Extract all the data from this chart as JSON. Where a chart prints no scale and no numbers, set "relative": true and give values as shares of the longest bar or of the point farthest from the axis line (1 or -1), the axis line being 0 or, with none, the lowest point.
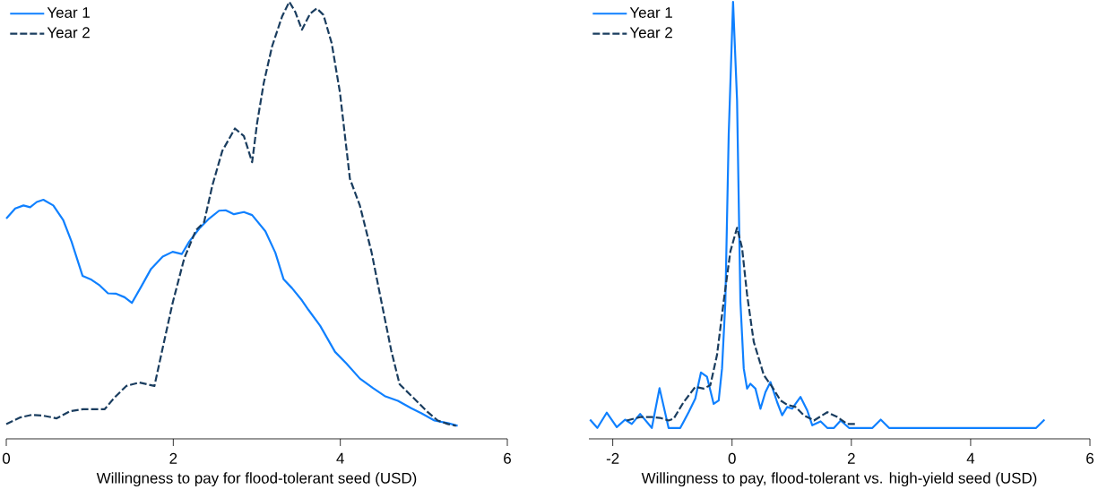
{
  "chart_data": [
    {
      "type": "line",
      "relative": true,
      "xlabel": "Willingness to pay for flood-tolerant seed (USD)",
      "xlim": [
        0,
        6
      ],
      "xticks": [
        0,
        2,
        4,
        6
      ],
      "legend": "top left",
      "series": [
        {
          "name": "Year 1",
          "color": "#0f80ff",
          "line_style": "solid",
          "x": [
            0,
            0.107,
            0.206,
            0.286,
            0.365,
            0.444,
            0.563,
            0.683,
            0.782,
            0.913,
            1.02,
            1.119,
            1.218,
            1.317,
            1.417,
            1.504,
            1.615,
            1.734,
            1.873,
            1.992,
            2.103,
            2.19,
            2.31,
            2.429,
            2.548,
            2.627,
            2.726,
            2.845,
            2.944,
            3.103,
            3.222,
            3.321,
            3.421,
            3.54,
            3.619,
            3.758,
            3.937,
            4.075,
            4.234,
            4.393,
            4.532,
            4.69,
            4.849,
            4.968,
            5.127,
            5.286,
            5.405
          ],
          "values": [
            0.504,
            0.527,
            0.534,
            0.53,
            0.542,
            0.547,
            0.534,
            0.5,
            0.451,
            0.373,
            0.364,
            0.351,
            0.333,
            0.332,
            0.324,
            0.311,
            0.348,
            0.389,
            0.417,
            0.428,
            0.423,
            0.451,
            0.481,
            0.504,
            0.522,
            0.523,
            0.514,
            0.519,
            0.512,
            0.475,
            0.426,
            0.365,
            0.345,
            0.317,
            0.295,
            0.259,
            0.199,
            0.172,
            0.138,
            0.116,
            0.098,
            0.087,
            0.07,
            0.059,
            0.042,
            0.036,
            0.03
          ]
        },
        {
          "name": "Year 2",
          "color": "#1a3d5f",
          "line_style": "dashed",
          "x": [
            0,
            0.167,
            0.306,
            0.444,
            0.603,
            0.762,
            0.921,
            1.179,
            1.298,
            1.437,
            1.595,
            1.774,
            1.873,
            1.992,
            2.131,
            2.27,
            2.369,
            2.468,
            2.587,
            2.738,
            2.845,
            2.944,
            3.004,
            3.083,
            3.183,
            3.302,
            3.389,
            3.46,
            3.54,
            3.639,
            3.718,
            3.798,
            3.897,
            3.996,
            4.115,
            4.234,
            4.373,
            4.492,
            4.611,
            4.71,
            4.869,
            5.048,
            5.167,
            5.286,
            5.385
          ],
          "values": [
            0.034,
            0.049,
            0.055,
            0.053,
            0.047,
            0.063,
            0.068,
            0.068,
            0.095,
            0.121,
            0.129,
            0.121,
            0.208,
            0.311,
            0.413,
            0.477,
            0.496,
            0.58,
            0.659,
            0.71,
            0.693,
            0.633,
            0.723,
            0.814,
            0.898,
            0.966,
            1.0,
            0.977,
            0.936,
            0.973,
            0.985,
            0.97,
            0.905,
            0.792,
            0.595,
            0.534,
            0.428,
            0.314,
            0.201,
            0.125,
            0.095,
            0.061,
            0.042,
            0.034,
            0.03
          ]
        }
      ]
    },
    {
      "type": "line",
      "relative": true,
      "xlabel": "Willingness to pay, flood-tolerant vs. high-yield seed (USD)",
      "xlim": [
        -2.4,
        6
      ],
      "xticks": [
        -2,
        0,
        2,
        4,
        6
      ],
      "legend": "top left",
      "series": [
        {
          "name": "Year 1",
          "color": "#0f80ff",
          "line_style": "solid",
          "x": [
            -2.381,
            -2.258,
            -2.101,
            -1.933,
            -1.793,
            -1.681,
            -1.541,
            -1.345,
            -1.216,
            -1.064,
            -0.868,
            -0.728,
            -0.616,
            -0.521,
            -0.42,
            -0.308,
            -0.224,
            -0.168,
            -0.112,
            -0.056,
            0.017,
            0.084,
            0.14,
            0.196,
            0.252,
            0.308,
            0.392,
            0.476,
            0.56,
            0.644,
            0.756,
            0.84,
            0.924,
            1.008,
            1.064,
            1.148,
            1.261,
            1.345,
            1.485,
            1.597,
            1.709,
            1.821,
            1.961,
            2.353,
            2.493,
            2.633,
            5.098,
            5.238
          ],
          "values": [
            0.044,
            0.025,
            0.06,
            0.027,
            0.044,
            0.034,
            0.057,
            0.025,
            0.116,
            0.025,
            0.025,
            0.061,
            0.092,
            0.152,
            0.142,
            0.08,
            0.088,
            0.161,
            0.314,
            0.697,
            1.0,
            0.774,
            0.314,
            0.161,
            0.115,
            0.126,
            0.115,
            0.069,
            0.107,
            0.13,
            0.084,
            0.054,
            0.073,
            0.069,
            0.08,
            0.096,
            0.065,
            0.031,
            0.04,
            0.025,
            0.025,
            0.042,
            0.025,
            0.025,
            0.044,
            0.025,
            0.025,
            0.044
          ]
        },
        {
          "name": "Year 2",
          "color": "#1a3d5f",
          "line_style": "dashed",
          "x": [
            -1.765,
            -1.541,
            -1.345,
            -1.205,
            -1.064,
            -0.98,
            -0.812,
            -0.616,
            -0.476,
            -0.364,
            -0.252,
            -0.14,
            -0.028,
            0.084,
            0.168,
            0.252,
            0.364,
            0.532,
            0.672,
            0.812,
            0.924,
            1.064,
            1.204,
            1.373,
            1.597,
            1.765,
            1.933,
            2.073
          ],
          "values": [
            0.042,
            0.05,
            0.05,
            0.048,
            0.042,
            0.046,
            0.084,
            0.119,
            0.115,
            0.123,
            0.192,
            0.315,
            0.429,
            0.483,
            0.437,
            0.33,
            0.222,
            0.146,
            0.119,
            0.088,
            0.078,
            0.073,
            0.054,
            0.042,
            0.061,
            0.05,
            0.034,
            0.034
          ]
        }
      ]
    }
  ]
}
